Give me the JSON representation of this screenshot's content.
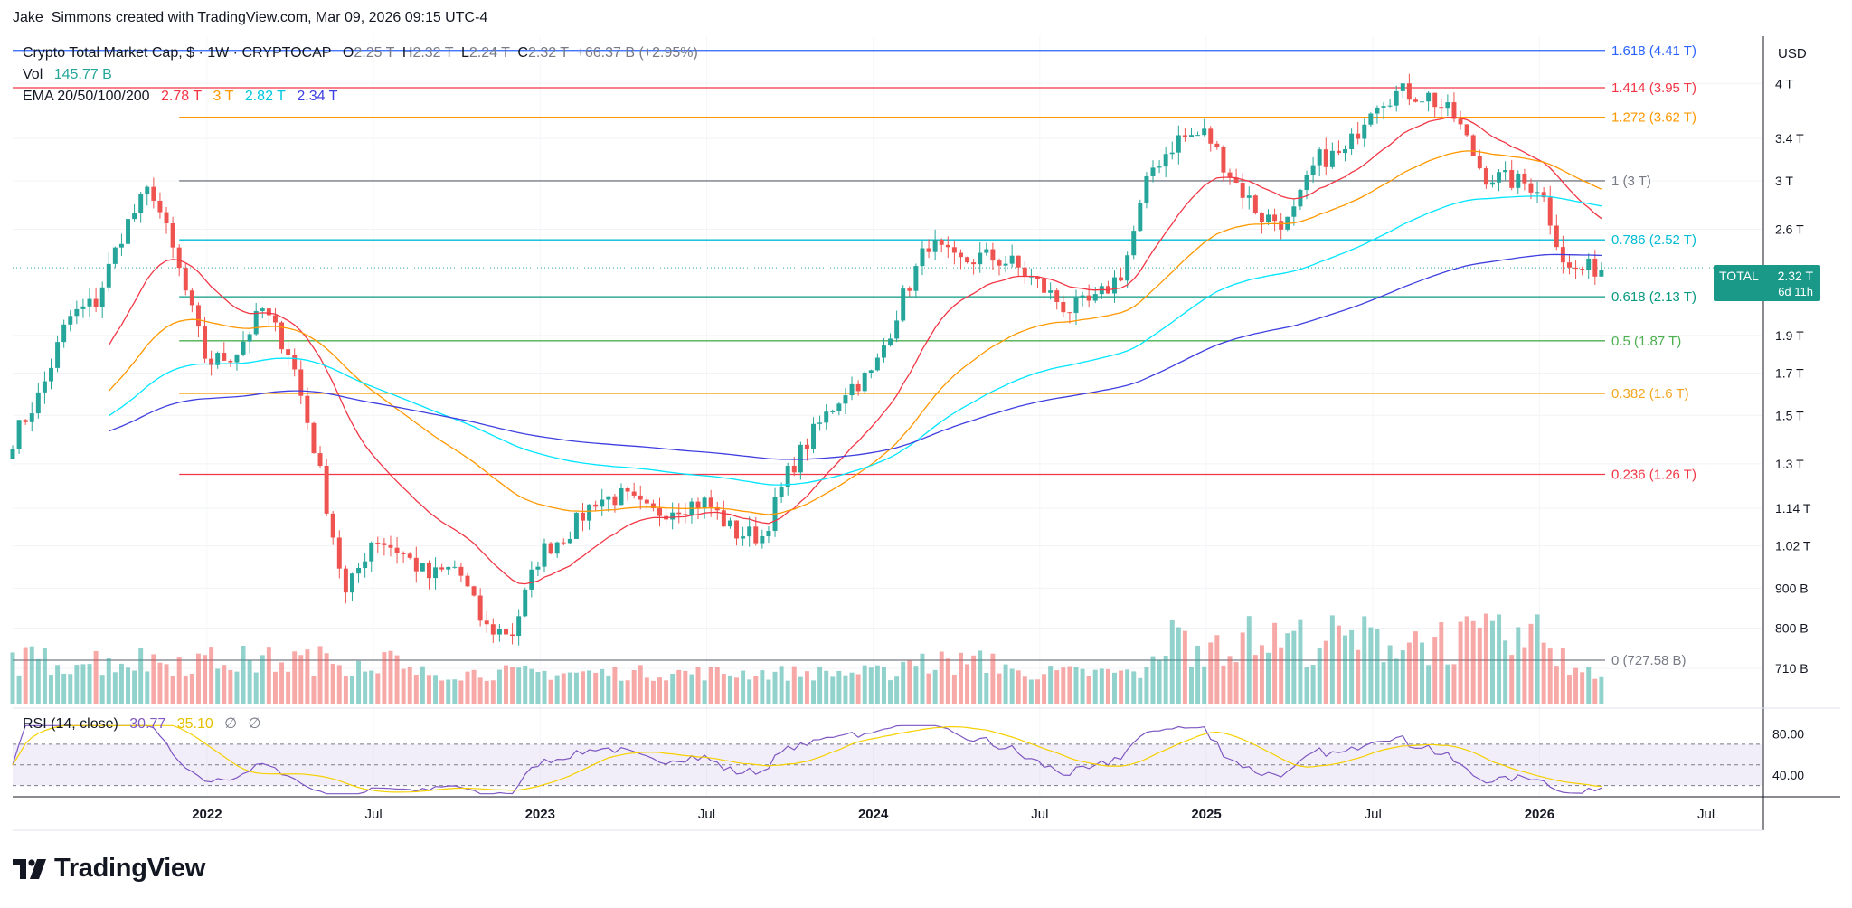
{
  "credit": "Jake_Simmons created with TradingView.com, Mar 09, 2026 09:15 UTC-4",
  "legend": {
    "symbol": "Crypto Total Market Cap, $ · 1W · CRYPTOCAP",
    "o_label": "O",
    "o_value": "2.25 T",
    "h_label": "H",
    "h_value": "2.32 T",
    "l_label": "L",
    "l_value": "2.24 T",
    "c_label": "C",
    "c_value": "2.32 T",
    "change": "+66.37 B (+2.95%)",
    "vol_label": "Vol",
    "vol_value": "145.77 B",
    "ema_label": "EMA 20/50/100/200",
    "ema20": "2.78 T",
    "ema50": "3 T",
    "ema100": "2.82 T",
    "ema200": "2.34 T",
    "rsi_label": "RSI (14, close)",
    "rsi_value": "30.77",
    "rsi_ma": "35.10",
    "rsi_na1": "∅",
    "rsi_na2": "∅"
  },
  "price_tag": {
    "symbol": "TOTAL",
    "value": "2.32 T",
    "countdown": "6d 11h"
  },
  "currency": "USD",
  "logo": {
    "text": "TradingView"
  },
  "colors": {
    "up": "#26a69a",
    "down": "#ef5350",
    "ema20": "#f23645",
    "ema50": "#ff9800",
    "ema100": "#00e5ff",
    "ema200": "#3f3fe0",
    "rsi": "#7e57c2",
    "rsi_ma": "#f5d000",
    "tag": "#1a9989"
  },
  "chart_data": {
    "type": "candlestick",
    "title": "Crypto Total Market Cap, $ · 1W · CRYPTOCAP",
    "scale": "log",
    "ylim": [
      0.64,
      4.6
    ],
    "ylabel": "USD",
    "y_ticks": [
      "4 T",
      "3.4 T",
      "3 T",
      "2.6 T",
      "1.9 T",
      "1.7 T",
      "1.5 T",
      "1.3 T",
      "1.14 T",
      "1.02 T",
      "900 B",
      "800 B",
      "710 B"
    ],
    "y_tick_values": [
      4.0,
      3.4,
      3.0,
      2.6,
      1.9,
      1.7,
      1.5,
      1.3,
      1.14,
      1.02,
      0.9,
      0.8,
      0.71
    ],
    "x_labels": [
      "2022",
      "Jul",
      "2023",
      "Jul",
      "2024",
      "Jul",
      "2025",
      "Jul",
      "2026",
      "Jul"
    ],
    "x_label_dates": [
      "2022-01",
      "2022-07",
      "2023-01",
      "2023-07",
      "2024-01",
      "2024-07",
      "2025-01",
      "2025-07",
      "2026-01",
      "2026-07"
    ],
    "x_range": [
      "2021-06",
      "2026-09"
    ],
    "close_path": [
      [
        "2021-06",
        1.4
      ],
      [
        "2021-07",
        1.6
      ],
      [
        "2021-08",
        2.0
      ],
      [
        "2021-09",
        2.1
      ],
      [
        "2021-10",
        2.6
      ],
      [
        "2021-11",
        2.95
      ],
      [
        "2021-12",
        2.3
      ],
      [
        "2022-01",
        1.75
      ],
      [
        "2022-02",
        1.8
      ],
      [
        "2022-03",
        2.05
      ],
      [
        "2022-04",
        1.8
      ],
      [
        "2022-05",
        1.3
      ],
      [
        "2022-06",
        0.88
      ],
      [
        "2022-07",
        1.05
      ],
      [
        "2022-08",
        1.0
      ],
      [
        "2022-09",
        0.93
      ],
      [
        "2022-10",
        0.96
      ],
      [
        "2022-11",
        0.8
      ],
      [
        "2022-12",
        0.79
      ],
      [
        "2023-01",
        1.0
      ],
      [
        "2023-02",
        1.06
      ],
      [
        "2023-03",
        1.17
      ],
      [
        "2023-04",
        1.18
      ],
      [
        "2023-05",
        1.12
      ],
      [
        "2023-06",
        1.15
      ],
      [
        "2023-07",
        1.16
      ],
      [
        "2023-08",
        1.06
      ],
      [
        "2023-09",
        1.05
      ],
      [
        "2023-10",
        1.28
      ],
      [
        "2023-11",
        1.45
      ],
      [
        "2023-12",
        1.62
      ],
      [
        "2024-01",
        1.7
      ],
      [
        "2024-02",
        2.1
      ],
      [
        "2024-03",
        2.5
      ],
      [
        "2024-04",
        2.35
      ],
      [
        "2024-05",
        2.4
      ],
      [
        "2024-06",
        2.35
      ],
      [
        "2024-07",
        2.2
      ],
      [
        "2024-08",
        2.05
      ],
      [
        "2024-09",
        2.1
      ],
      [
        "2024-10",
        2.3
      ],
      [
        "2024-11",
        3.1
      ],
      [
        "2024-12",
        3.4
      ],
      [
        "2025-01",
        3.45
      ],
      [
        "2025-02",
        3.0
      ],
      [
        "2025-03",
        2.7
      ],
      [
        "2025-04",
        2.65
      ],
      [
        "2025-05",
        3.2
      ],
      [
        "2025-06",
        3.25
      ],
      [
        "2025-07",
        3.8
      ],
      [
        "2025-08",
        3.9
      ],
      [
        "2025-09",
        3.85
      ],
      [
        "2025-10",
        3.6
      ],
      [
        "2025-11",
        3.05
      ],
      [
        "2025-12",
        3.0
      ],
      [
        "2026-01",
        2.95
      ],
      [
        "2026-02",
        2.3
      ],
      [
        "2026-03",
        2.32
      ]
    ],
    "volume_label": "Vol",
    "volume_last": "145.77 B",
    "fib_levels": [
      {
        "ratio": "1.618",
        "label": "1.618 (4.41 T)",
        "value": 4.41,
        "color": "#2962ff"
      },
      {
        "ratio": "1.414",
        "label": "1.414 (3.95 T)",
        "value": 3.95,
        "color": "#f23645"
      },
      {
        "ratio": "1.272",
        "label": "1.272 (3.62 T)",
        "value": 3.62,
        "color": "#ff9800"
      },
      {
        "ratio": "1",
        "label": "1 (3 T)",
        "value": 3.0,
        "color": "#787b86"
      },
      {
        "ratio": "0.786",
        "label": "0.786 (2.52 T)",
        "value": 2.52,
        "color": "#00bcd4"
      },
      {
        "ratio": "0.618",
        "label": "0.618 (2.13 T)",
        "value": 2.13,
        "color": "#089981"
      },
      {
        "ratio": "0.5",
        "label": "0.5 (1.87 T)",
        "value": 1.87,
        "color": "#4caf50"
      },
      {
        "ratio": "0.382",
        "label": "0.382 (1.6 T)",
        "value": 1.6,
        "color": "#f5a623"
      },
      {
        "ratio": "0.236",
        "label": "0.236 (1.26 T)",
        "value": 1.26,
        "color": "#f23645"
      },
      {
        "ratio": "0",
        "label": "0 (727.58 B)",
        "value": 0.72758,
        "color": "#787b86"
      }
    ],
    "ema_values": {
      "ema20": "2.78 T",
      "ema50": "3 T",
      "ema100": "2.82 T",
      "ema200": "2.34 T"
    },
    "rsi": {
      "title": "RSI (14, close)",
      "value": 30.77,
      "ma": 35.1,
      "ticks": [
        "80.00",
        "40.00"
      ],
      "tick_values": [
        80,
        40
      ],
      "band": [
        30,
        70
      ],
      "mid": 50
    }
  }
}
